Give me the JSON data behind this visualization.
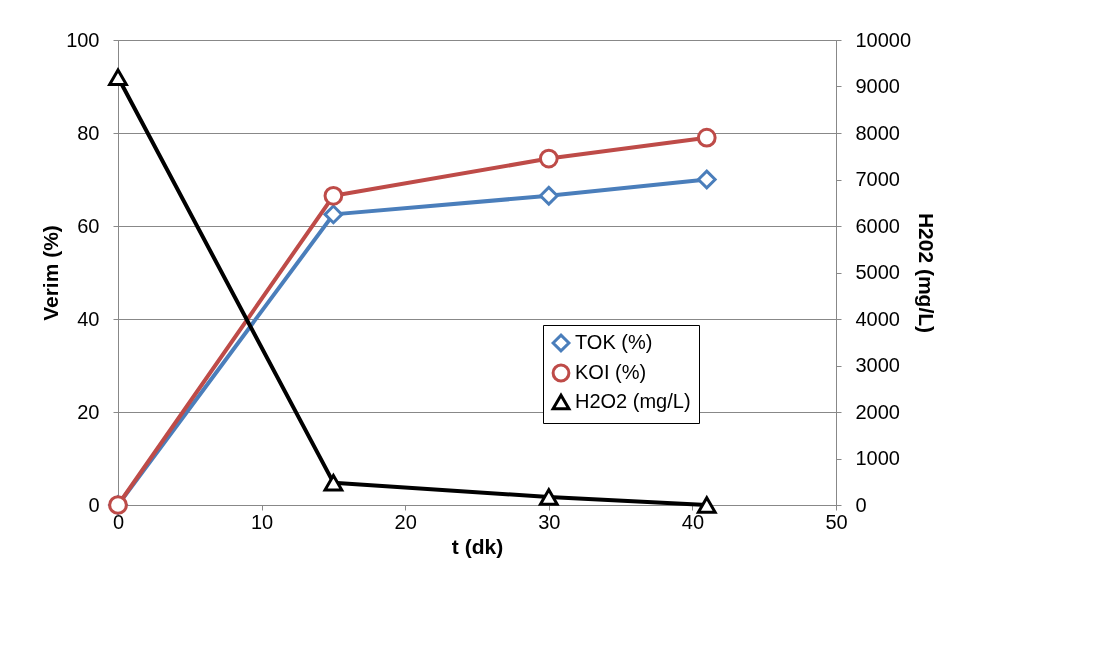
{
  "chart_data": {
    "type": "line",
    "xlabel": "t  (dk)",
    "ylabel": "Verim (%)",
    "y2label": "H202 (mg/L)",
    "xlim": [
      0,
      50
    ],
    "xticks": [
      0,
      10,
      20,
      30,
      40,
      50
    ],
    "ylim": [
      0,
      100
    ],
    "yticks": [
      0,
      20,
      40,
      60,
      80,
      100
    ],
    "y2lim": [
      0,
      10000
    ],
    "y2ticks": [
      0,
      1000,
      2000,
      3000,
      4000,
      5000,
      6000,
      7000,
      8000,
      9000,
      10000
    ],
    "grid": "y",
    "legend": "right",
    "line_style": "solid",
    "series": [
      {
        "name": "TOK (%)",
        "color": "#4a7ebb",
        "marker": "diamond",
        "x": [
          0,
          15,
          30,
          41
        ],
        "values": [
          0,
          62.5,
          66.5,
          70
        ]
      },
      {
        "name": "KOI (%)",
        "color": "#be4b48",
        "marker": "circle",
        "x": [
          0,
          15,
          30,
          41
        ],
        "values": [
          0,
          66.5,
          74.5,
          79
        ]
      },
      {
        "name": "H2O2 (mg/L)",
        "color": "#000000",
        "marker": "triangle",
        "axis": "y2",
        "x": [
          0,
          15,
          30,
          41
        ],
        "values": [
          9200,
          480,
          170,
          0
        ]
      }
    ]
  }
}
